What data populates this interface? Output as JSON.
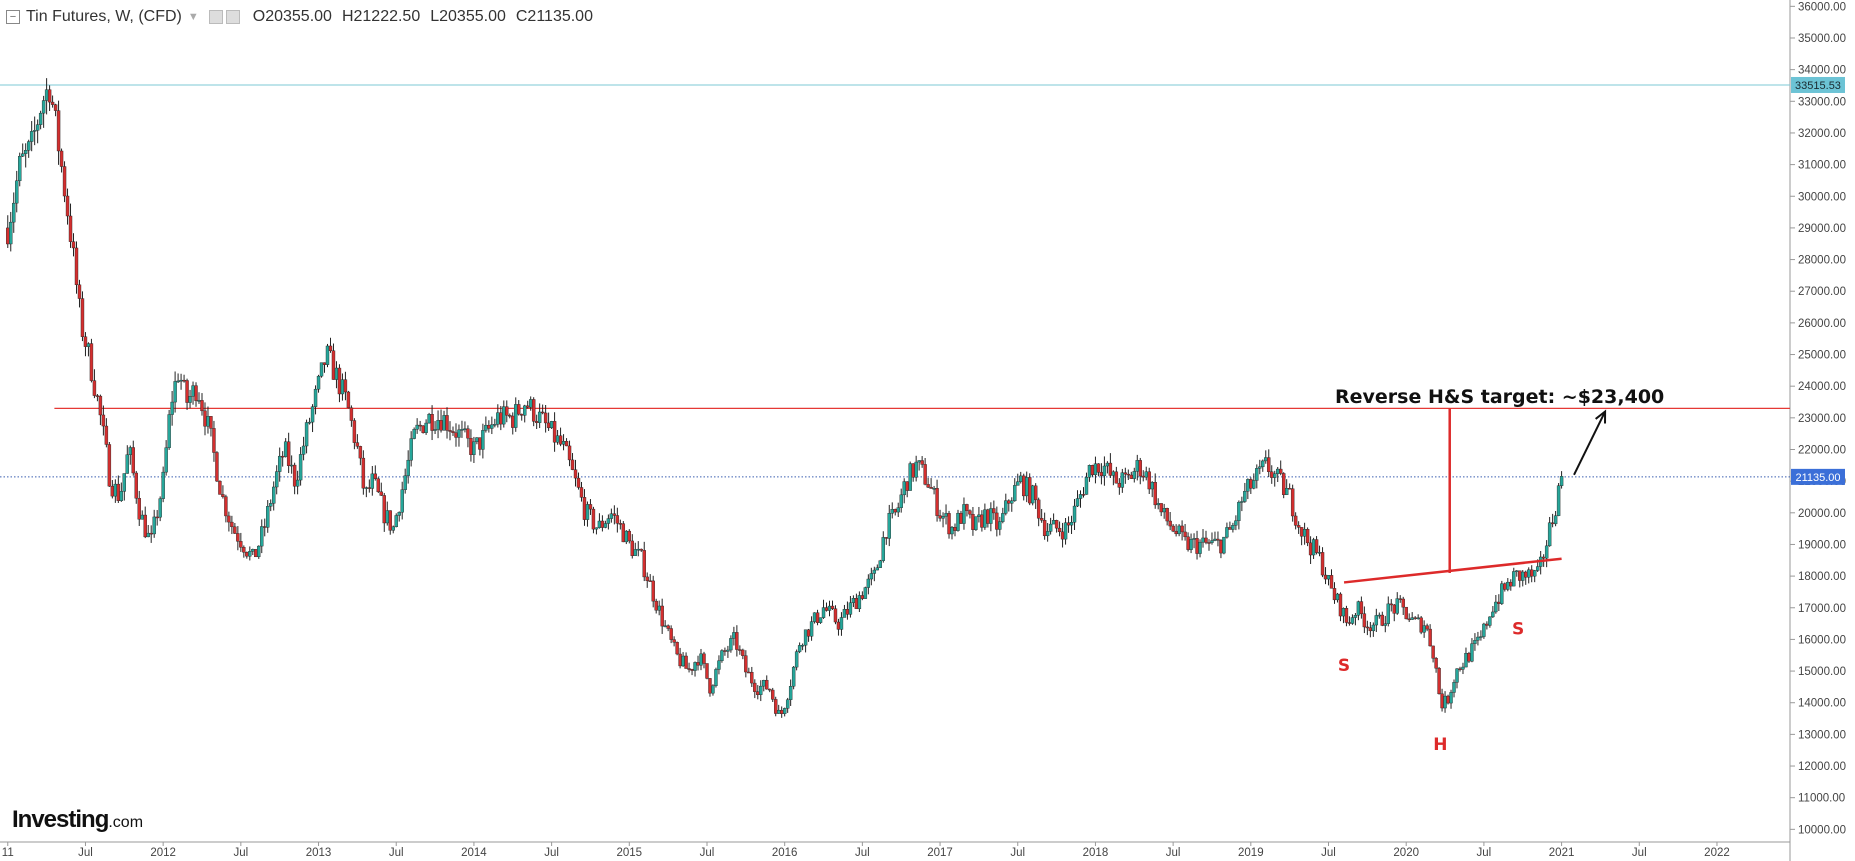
{
  "header": {
    "title": "Tin Futures, W, (CFD)",
    "open": "O20355.00",
    "high": "H21222.50",
    "low": "L20355.00",
    "close": "C21135.00"
  },
  "logo": {
    "brand": "Investing",
    "domain": ".com"
  },
  "colors": {
    "up": "#26a69a",
    "down": "#d32f2f",
    "hline_red": "#e53935",
    "hline_cyan": "#7ec8d6",
    "price_tag": "#3b6fd8",
    "cyan_tag": "#6cc3d5",
    "annotation_red": "#dd2a2a"
  },
  "chart_data": {
    "type": "candlestick",
    "title": "Tin Futures, W, (CFD)",
    "xlabel": "",
    "ylabel": "",
    "ylim": [
      9600,
      36200
    ],
    "y_ticks": [
      10000,
      11000,
      12000,
      13000,
      14000,
      15000,
      16000,
      17000,
      18000,
      19000,
      20000,
      21000,
      22000,
      23000,
      24000,
      25000,
      26000,
      27000,
      28000,
      29000,
      30000,
      31000,
      32000,
      33000,
      34000,
      35000,
      36000
    ],
    "x_ticks": [
      {
        "label": "11",
        "t": 2011.0
      },
      {
        "label": "Jul",
        "t": 2011.5
      },
      {
        "label": "2012",
        "t": 2012.0
      },
      {
        "label": "Jul",
        "t": 2012.5
      },
      {
        "label": "2013",
        "t": 2013.0
      },
      {
        "label": "Jul",
        "t": 2013.5
      },
      {
        "label": "2014",
        "t": 2014.0
      },
      {
        "label": "Jul",
        "t": 2014.5
      },
      {
        "label": "2015",
        "t": 2015.0
      },
      {
        "label": "Jul",
        "t": 2015.5
      },
      {
        "label": "2016",
        "t": 2016.0
      },
      {
        "label": "Jul",
        "t": 2016.5
      },
      {
        "label": "2017",
        "t": 2017.0
      },
      {
        "label": "Jul",
        "t": 2017.5
      },
      {
        "label": "2018",
        "t": 2018.0
      },
      {
        "label": "Jul",
        "t": 2018.5
      },
      {
        "label": "2019",
        "t": 2019.0
      },
      {
        "label": "Jul",
        "t": 2019.5
      },
      {
        "label": "2020",
        "t": 2020.0
      },
      {
        "label": "Jul",
        "t": 2020.5
      },
      {
        "label": "2021",
        "t": 2021.0
      },
      {
        "label": "Jul",
        "t": 2021.5
      },
      {
        "label": "2022",
        "t": 2022.0
      }
    ],
    "price_path": [
      [
        2011.0,
        29000
      ],
      [
        2011.08,
        31000
      ],
      [
        2011.15,
        31500
      ],
      [
        2011.22,
        33000
      ],
      [
        2011.27,
        33500
      ],
      [
        2011.33,
        31500
      ],
      [
        2011.4,
        29000
      ],
      [
        2011.47,
        26000
      ],
      [
        2011.52,
        25000
      ],
      [
        2011.58,
        23500
      ],
      [
        2011.63,
        22000
      ],
      [
        2011.66,
        21000
      ],
      [
        2011.72,
        20500
      ],
      [
        2011.78,
        22000
      ],
      [
        2011.85,
        20000
      ],
      [
        2011.92,
        19000
      ],
      [
        2012.0,
        21000
      ],
      [
        2012.05,
        23500
      ],
      [
        2012.1,
        24500
      ],
      [
        2012.15,
        23500
      ],
      [
        2012.22,
        24000
      ],
      [
        2012.3,
        22500
      ],
      [
        2012.38,
        20500
      ],
      [
        2012.45,
        19500
      ],
      [
        2012.52,
        19000
      ],
      [
        2012.58,
        18500
      ],
      [
        2012.65,
        19500
      ],
      [
        2012.72,
        21000
      ],
      [
        2012.78,
        22000
      ],
      [
        2012.85,
        21000
      ],
      [
        2012.92,
        22500
      ],
      [
        2013.0,
        24000
      ],
      [
        2013.05,
        25000
      ],
      [
        2013.1,
        24500
      ],
      [
        2013.18,
        23500
      ],
      [
        2013.25,
        22000
      ],
      [
        2013.3,
        20500
      ],
      [
        2013.35,
        21000
      ],
      [
        2013.42,
        20000
      ],
      [
        2013.48,
        19500
      ],
      [
        2013.55,
        21000
      ],
      [
        2013.62,
        22500
      ],
      [
        2013.7,
        23000
      ],
      [
        2013.8,
        23000
      ],
      [
        2013.9,
        22500
      ],
      [
        2014.0,
        22000
      ],
      [
        2014.08,
        22500
      ],
      [
        2014.15,
        23000
      ],
      [
        2014.25,
        23000
      ],
      [
        2014.33,
        23500
      ],
      [
        2014.42,
        23000
      ],
      [
        2014.5,
        22500
      ],
      [
        2014.58,
        22000
      ],
      [
        2014.65,
        21000
      ],
      [
        2014.72,
        20000
      ],
      [
        2014.8,
        19500
      ],
      [
        2014.88,
        20000
      ],
      [
        2014.95,
        19500
      ],
      [
        2015.0,
        19000
      ],
      [
        2015.08,
        18500
      ],
      [
        2015.15,
        17500
      ],
      [
        2015.22,
        16500
      ],
      [
        2015.3,
        15500
      ],
      [
        2015.38,
        15000
      ],
      [
        2015.45,
        15500
      ],
      [
        2015.52,
        14500
      ],
      [
        2015.6,
        15500
      ],
      [
        2015.68,
        16000
      ],
      [
        2015.75,
        15000
      ],
      [
        2015.82,
        14500
      ],
      [
        2015.9,
        14500
      ],
      [
        2015.97,
        13500
      ],
      [
        2016.03,
        14500
      ],
      [
        2016.1,
        16000
      ],
      [
        2016.18,
        16500
      ],
      [
        2016.25,
        17000
      ],
      [
        2016.35,
        16500
      ],
      [
        2016.42,
        17000
      ],
      [
        2016.5,
        17500
      ],
      [
        2016.58,
        18000
      ],
      [
        2016.65,
        19500
      ],
      [
        2016.72,
        20000
      ],
      [
        2016.78,
        21000
      ],
      [
        2016.85,
        21500
      ],
      [
        2016.92,
        21000
      ],
      [
        2017.0,
        20000
      ],
      [
        2017.08,
        19500
      ],
      [
        2017.15,
        20000
      ],
      [
        2017.22,
        19500
      ],
      [
        2017.3,
        20000
      ],
      [
        2017.38,
        19500
      ],
      [
        2017.45,
        20500
      ],
      [
        2017.52,
        21000
      ],
      [
        2017.6,
        20500
      ],
      [
        2017.68,
        19500
      ],
      [
        2017.75,
        19500
      ],
      [
        2017.82,
        19500
      ],
      [
        2017.9,
        20500
      ],
      [
        2017.97,
        21500
      ],
      [
        2018.05,
        21500
      ],
      [
        2018.12,
        21000
      ],
      [
        2018.2,
        21000
      ],
      [
        2018.28,
        21500
      ],
      [
        2018.35,
        21000
      ],
      [
        2018.42,
        20000
      ],
      [
        2018.5,
        19500
      ],
      [
        2018.58,
        19000
      ],
      [
        2018.65,
        19000
      ],
      [
        2018.72,
        19000
      ],
      [
        2018.8,
        19000
      ],
      [
        2018.88,
        19500
      ],
      [
        2018.95,
        20500
      ],
      [
        2019.02,
        21000
      ],
      [
        2019.1,
        21500
      ],
      [
        2019.18,
        21000
      ],
      [
        2019.25,
        20500
      ],
      [
        2019.32,
        19500
      ],
      [
        2019.38,
        19000
      ],
      [
        2019.45,
        18500
      ],
      [
        2019.52,
        17500
      ],
      [
        2019.58,
        17000
      ],
      [
        2019.62,
        16500
      ],
      [
        2019.68,
        17000
      ],
      [
        2019.75,
        16500
      ],
      [
        2019.82,
        16500
      ],
      [
        2019.9,
        17000
      ],
      [
        2019.97,
        17000
      ],
      [
        2020.05,
        16500
      ],
      [
        2020.12,
        16500
      ],
      [
        2020.18,
        15500
      ],
      [
        2020.22,
        14000
      ],
      [
        2020.26,
        14000
      ],
      [
        2020.32,
        15000
      ],
      [
        2020.4,
        15500
      ],
      [
        2020.48,
        16000
      ],
      [
        2020.55,
        17000
      ],
      [
        2020.62,
        17500
      ],
      [
        2020.7,
        18000
      ],
      [
        2020.78,
        18000
      ],
      [
        2020.85,
        18000
      ],
      [
        2020.9,
        19000
      ],
      [
        2020.95,
        20000
      ],
      [
        2021.0,
        21135
      ]
    ],
    "annotations": {
      "target_text": "Reverse H&S target: ~$23,400",
      "target_level": 23400,
      "neckline": [
        [
          2019.6,
          17800
        ],
        [
          2021.0,
          18550
        ]
      ],
      "measure_x": 2020.28,
      "measure_from": 18100,
      "measure_to": 23300,
      "arrow_from": [
        2021.08,
        21200
      ],
      "arrow_to": [
        2021.28,
        23200
      ],
      "pattern_labels": [
        {
          "text": "S",
          "t": 2019.6,
          "price": 15000
        },
        {
          "text": "H",
          "t": 2020.22,
          "price": 12500
        },
        {
          "text": "S",
          "t": 2020.72,
          "price": 16150
        }
      ]
    },
    "horizontal_lines": [
      {
        "price": 23300,
        "color": "red"
      },
      {
        "price": 33515.53,
        "color": "cyan",
        "tag": "33515.53"
      },
      {
        "price": 21135.0,
        "color": "blue-dotted",
        "tag": "21135.00"
      }
    ]
  }
}
